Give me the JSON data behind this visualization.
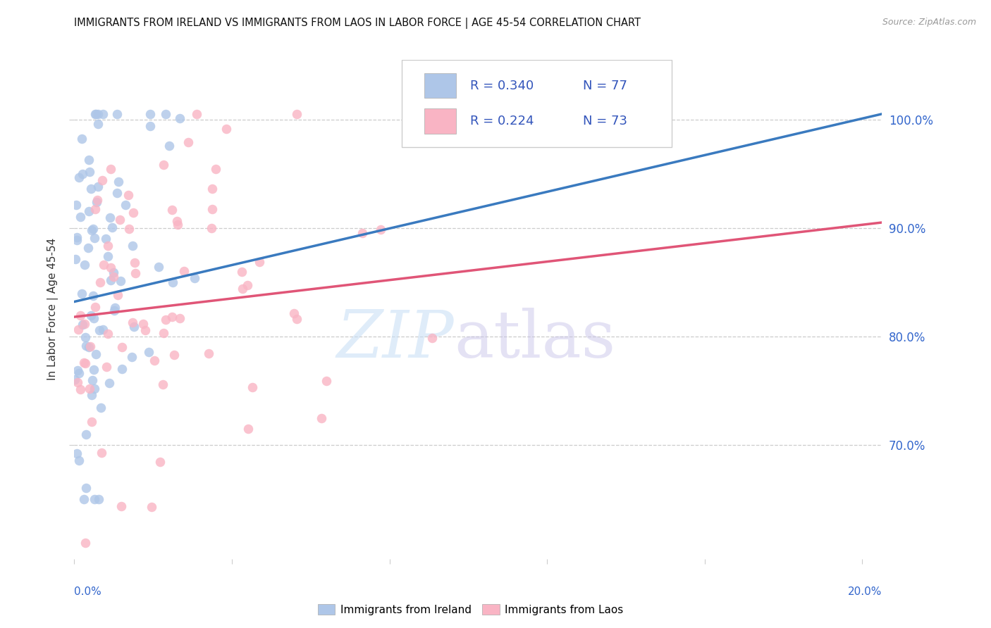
{
  "title": "IMMIGRANTS FROM IRELAND VS IMMIGRANTS FROM LAOS IN LABOR FORCE | AGE 45-54 CORRELATION CHART",
  "source": "Source: ZipAtlas.com",
  "ylabel": "In Labor Force | Age 45-54",
  "legend_ireland": "Immigrants from Ireland",
  "legend_laos": "Immigrants from Laos",
  "R_ireland": 0.34,
  "N_ireland": 77,
  "R_laos": 0.224,
  "N_laos": 73,
  "color_ireland": "#aec6e8",
  "color_laos": "#f9b4c4",
  "color_trendline_ireland": "#3a7abf",
  "color_trendline_laos": "#e05577",
  "color_legend_text": "#3355bb",
  "color_ytick_labels": "#3366cc",
  "background_color": "#ffffff",
  "grid_color": "#cccccc",
  "xmin": 0.0,
  "xmax": 0.205,
  "ymin": 0.595,
  "ymax": 1.055,
  "yticks": [
    0.7,
    0.8,
    0.9,
    1.0
  ],
  "ytick_labels": [
    "70.0%",
    "80.0%",
    "90.0%",
    "100.0%"
  ],
  "ireland_trend_y0": 0.832,
  "ireland_trend_y1": 1.005,
  "laos_trend_y0": 0.818,
  "laos_trend_y1": 0.905
}
